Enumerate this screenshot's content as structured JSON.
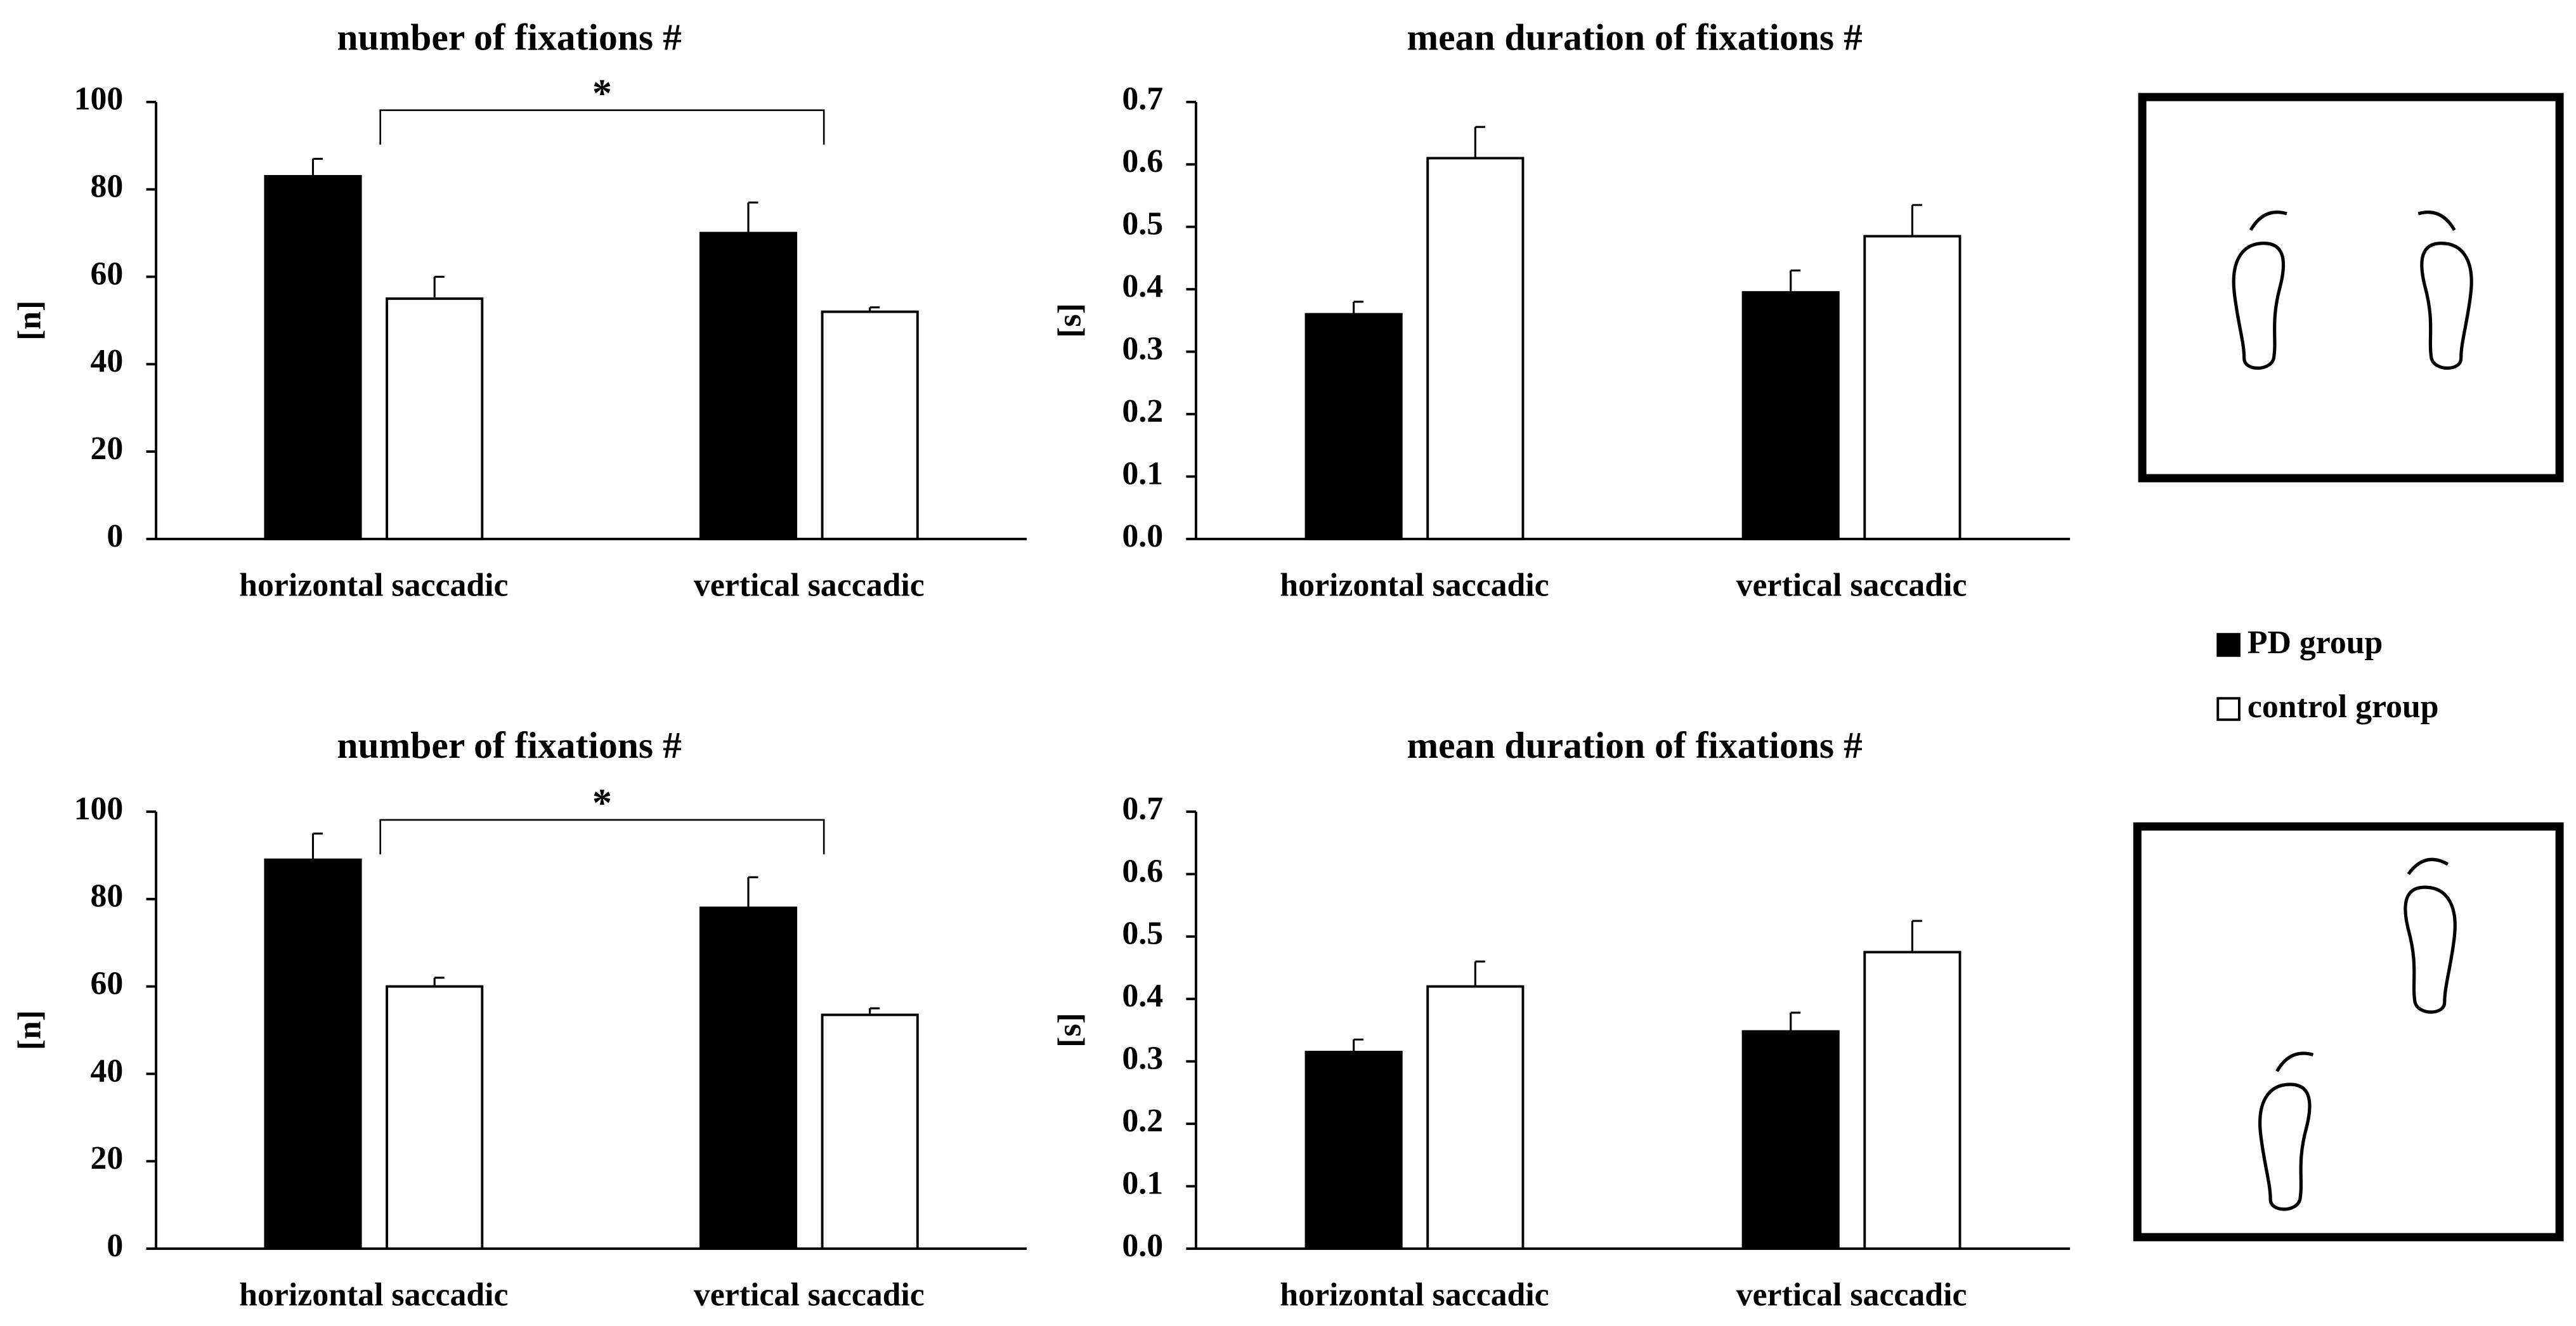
{
  "chart_data": [
    {
      "type": "bar",
      "title": "number of fixations #",
      "y_label": "[n]",
      "annotation": "*",
      "categories": [
        "horizontal saccadic",
        "vertical saccadic"
      ],
      "series": [
        {
          "name": "PD group",
          "color": "#000000",
          "values": [
            83,
            70
          ],
          "errors": [
            4,
            7
          ]
        },
        {
          "name": "control group",
          "color": "#ffffff",
          "values": [
            55,
            52
          ],
          "errors": [
            5,
            1
          ]
        }
      ],
      "ylim": [
        0,
        100
      ],
      "yticks": [
        0,
        20,
        40,
        60,
        80,
        100
      ]
    },
    {
      "type": "bar",
      "title": "mean duration of fixations #",
      "y_label": "[s]",
      "categories": [
        "horizontal saccadic",
        "vertical saccadic"
      ],
      "series": [
        {
          "color": "#000000",
          "values": [
            0.36,
            0.395
          ],
          "errors": [
            0.02,
            0.035
          ]
        },
        {
          "color": "#ffffff",
          "values": [
            0.61,
            0.485
          ],
          "errors": [
            0.05,
            0.05
          ]
        }
      ],
      "ylim": [
        0,
        0.7
      ],
      "yticks": [
        {
          "value": 0,
          "label": "0.0"
        },
        0.1,
        0.2,
        0.3,
        0.4,
        0.5,
        0.6,
        0.7
      ]
    },
    {
      "type": "bar",
      "title": "number of fixations #",
      "y_label": "[n]",
      "annotation": "*",
      "categories": [
        "horizontal saccadic",
        "vertical saccadic"
      ],
      "series": [
        {
          "color": "#000000",
          "values": [
            89,
            78
          ],
          "errors": [
            6,
            7
          ]
        },
        {
          "color": "#ffffff",
          "values": [
            60,
            53.5
          ],
          "errors": [
            2,
            1.5
          ]
        }
      ],
      "ylim": [
        0,
        100
      ],
      "yticks": [
        0,
        20,
        40,
        60,
        80,
        100
      ]
    },
    {
      "type": "bar",
      "title": "mean duration of fixations #",
      "y_label": "[s]",
      "categories": [
        "horizontal saccadic",
        "vertical saccadic"
      ],
      "series": [
        {
          "color": "#000000",
          "values": [
            0.315,
            0.348
          ],
          "errors": [
            0.02,
            0.03
          ]
        },
        {
          "color": "#ffffff",
          "values": [
            0.42,
            0.475
          ],
          "errors": [
            0.04,
            0.05
          ]
        }
      ],
      "ylim": [
        0,
        0.7
      ],
      "yticks": [
        {
          "value": 0,
          "label": "0.0"
        },
        0.1,
        0.2,
        0.3,
        0.4,
        0.5,
        0.6,
        0.7
      ]
    }
  ]
}
